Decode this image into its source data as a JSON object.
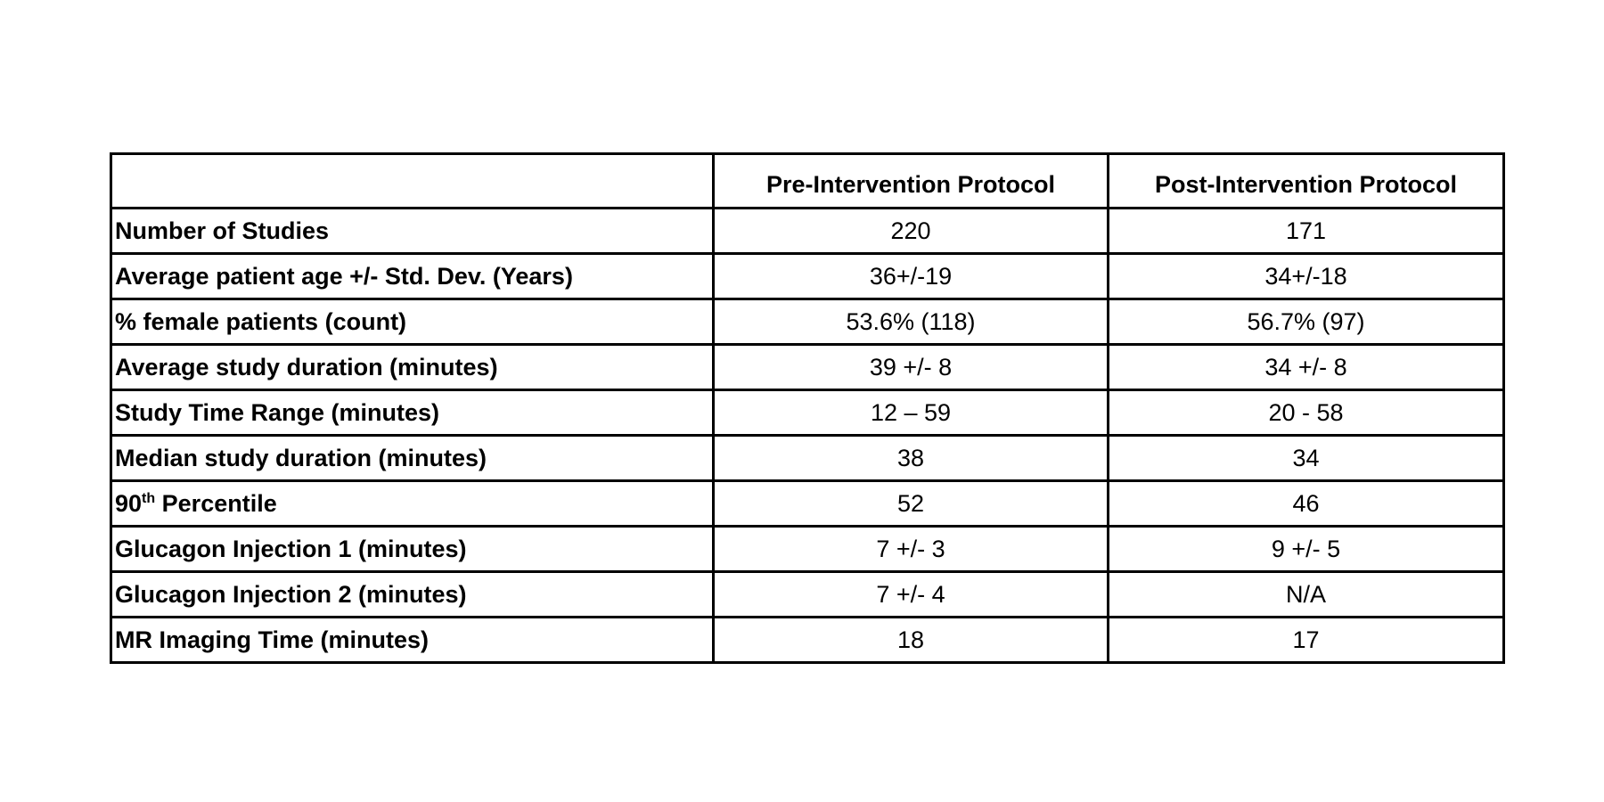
{
  "table": {
    "headers": [
      "",
      "Pre-Intervention Protocol",
      "Post-Intervention Protocol"
    ],
    "rows": [
      {
        "label": "Number of Studies",
        "pre": "220",
        "post": "171"
      },
      {
        "label": "Average patient age +/- Std. Dev. (Years)",
        "pre": "36+/-19",
        "post": "34+/-18"
      },
      {
        "label": "% female patients (count)",
        "pre": "53.6% (118)",
        "post": "56.7% (97)"
      },
      {
        "label": "Average study duration (minutes)",
        "pre": "39 +/- 8",
        "post": "34 +/- 8"
      },
      {
        "label": "Study Time Range (minutes)",
        "pre": "12 – 59",
        "post": "20 - 58"
      },
      {
        "label": "Median study duration (minutes)",
        "pre": "38",
        "post": "34"
      },
      {
        "label_main": "90",
        "label_sup": "th",
        "label_rest": " Percentile",
        "pre": "52",
        "post": "46"
      },
      {
        "label": "Glucagon Injection 1 (minutes)",
        "pre": "7 +/- 3",
        "post": "9 +/- 5"
      },
      {
        "label": "Glucagon Injection 2 (minutes)",
        "pre": "7 +/- 4",
        "post": "N/A"
      },
      {
        "label": "MR Imaging Time (minutes)",
        "pre": "18",
        "post": "17"
      }
    ]
  }
}
